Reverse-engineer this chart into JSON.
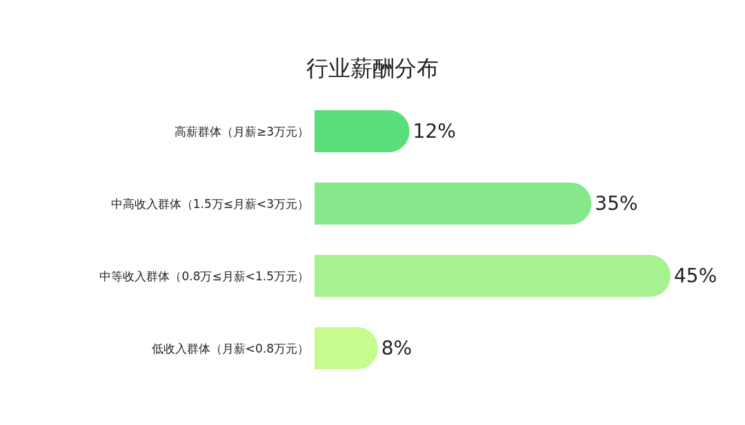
{
  "chart_data": {
    "type": "bar",
    "title": "行业薪酬分布",
    "orientation": "horizontal",
    "categories": [
      "高薪群体（月薪≥3万元）",
      "中高收入群体（1.5万≤月薪<3万元）",
      "中等收入群体（0.8万≤月薪<1.5万元）",
      "低收入群体（月薪<0.8万元）"
    ],
    "values": [
      12,
      35,
      45,
      8
    ],
    "colors": [
      "#5ade7a",
      "#86e88a",
      "#a6f290",
      "#c6fb8e"
    ],
    "value_labels": [
      "12%",
      "35%",
      "45%",
      "8%"
    ],
    "tick_labels": "y"
  }
}
